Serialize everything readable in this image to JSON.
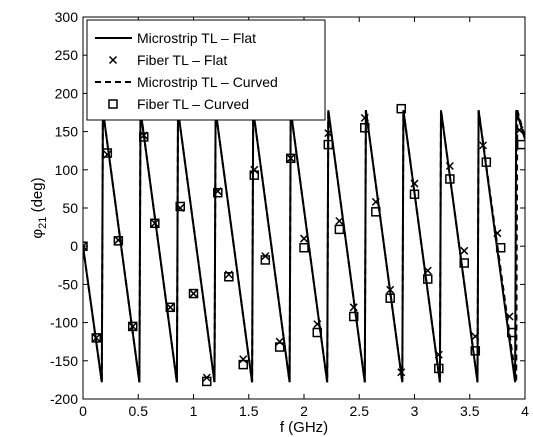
{
  "chart_data": {
    "type": "line",
    "xlabel": "f (GHz)",
    "ylabel_main": "φ",
    "ylabel_sub": "21",
    "ylabel_unit": " (deg)",
    "xlim": [
      0,
      4
    ],
    "ylim": [
      -200,
      300
    ],
    "xticks": [
      "0",
      "0.5",
      "1",
      "1.5",
      "2",
      "2.5",
      "3",
      "3.5",
      "4"
    ],
    "yticks": [
      "-200",
      "-150",
      "-100",
      "-50",
      "0",
      "50",
      "100",
      "150",
      "200",
      "250",
      "300"
    ],
    "grid": false,
    "legend_position": "top-left",
    "series": [
      {
        "name": "Microstrip TL – Flat",
        "style": "solid",
        "x": [
          0,
          0.17,
          0.18,
          0.51,
          0.52,
          0.85,
          0.86,
          1.19,
          1.2,
          1.53,
          1.54,
          1.87,
          1.88,
          2.21,
          2.22,
          2.55,
          2.56,
          2.89,
          2.9,
          3.23,
          3.24,
          3.57,
          3.58,
          3.91,
          3.92,
          4.0
        ],
        "y": [
          0,
          -178,
          178,
          -178,
          178,
          -178,
          178,
          -178,
          178,
          -178,
          178,
          -178,
          178,
          -178,
          178,
          -178,
          178,
          -178,
          178,
          -178,
          178,
          -178,
          178,
          -178,
          178,
          140
        ]
      },
      {
        "name": "Fiber TL – Flat",
        "style": "x-marker",
        "x": [
          0,
          0.12,
          0.22,
          0.32,
          0.45,
          0.55,
          0.65,
          0.79,
          0.88,
          1.0,
          1.12,
          1.22,
          1.32,
          1.45,
          1.55,
          1.65,
          1.78,
          1.88,
          2.0,
          2.12,
          2.22,
          2.32,
          2.45,
          2.55,
          2.65,
          2.78,
          2.88,
          3.0,
          3.12,
          3.22,
          3.32,
          3.45,
          3.55,
          3.62,
          3.75,
          3.86,
          3.95
        ],
        "y": [
          0,
          -120,
          120,
          8,
          -105,
          145,
          30,
          -80,
          50,
          -62,
          -172,
          72,
          -37,
          -148,
          100,
          -13,
          -125,
          115,
          10,
          -102,
          148,
          33,
          -80,
          168,
          58,
          -57,
          -165,
          82,
          -32,
          -142,
          105,
          -6,
          -118,
          132,
          17,
          -92,
          152
        ]
      },
      {
        "name": "Microstrip TL – Curved",
        "style": "dashed",
        "x": [
          0,
          0.17,
          0.18,
          0.51,
          0.52,
          0.85,
          0.86,
          1.19,
          1.2,
          1.53,
          1.54,
          1.87,
          1.88,
          2.21,
          2.22,
          2.55,
          2.56,
          2.89,
          2.9,
          3.23,
          3.24,
          3.57,
          3.58,
          3.92,
          3.93,
          4.0
        ],
        "y": [
          0,
          -178,
          178,
          -178,
          178,
          -178,
          178,
          -178,
          178,
          -178,
          178,
          -178,
          178,
          -178,
          178,
          -178,
          178,
          -178,
          178,
          -178,
          178,
          -178,
          178,
          -178,
          178,
          142
        ]
      },
      {
        "name": "Fiber TL – Curved",
        "style": "square-marker",
        "x": [
          0,
          0.12,
          0.22,
          0.32,
          0.45,
          0.55,
          0.65,
          0.79,
          0.88,
          1.0,
          1.12,
          1.22,
          1.32,
          1.45,
          1.55,
          1.65,
          1.78,
          1.88,
          2.0,
          2.12,
          2.22,
          2.32,
          2.45,
          2.55,
          2.65,
          2.78,
          2.88,
          3.0,
          3.12,
          3.22,
          3.32,
          3.45,
          3.55,
          3.65,
          3.78,
          3.88,
          3.97
        ],
        "y": [
          0,
          -120,
          122,
          7,
          -105,
          143,
          30,
          -80,
          52,
          -62,
          -177,
          70,
          -40,
          -155,
          93,
          -18,
          -132,
          115,
          -2,
          -113,
          133,
          22,
          -92,
          155,
          45,
          -68,
          180,
          68,
          -43,
          -160,
          88,
          -22,
          -137,
          110,
          -2,
          -113,
          133
        ]
      }
    ]
  }
}
